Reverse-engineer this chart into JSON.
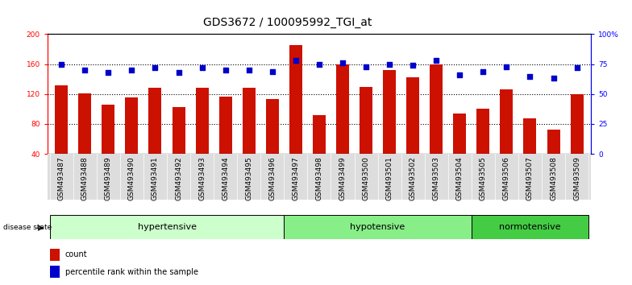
{
  "title": "GDS3672 / 100095992_TGI_at",
  "samples": [
    "GSM493487",
    "GSM493488",
    "GSM493489",
    "GSM493490",
    "GSM493491",
    "GSM493492",
    "GSM493493",
    "GSM493494",
    "GSM493495",
    "GSM493496",
    "GSM493497",
    "GSM493498",
    "GSM493499",
    "GSM493500",
    "GSM493501",
    "GSM493502",
    "GSM493503",
    "GSM493504",
    "GSM493505",
    "GSM493506",
    "GSM493507",
    "GSM493508",
    "GSM493509"
  ],
  "count_values": [
    132,
    121,
    106,
    115,
    128,
    103,
    128,
    117,
    128,
    113,
    185,
    92,
    160,
    130,
    152,
    142,
    160,
    94,
    100,
    126,
    88,
    72,
    120
  ],
  "percentile_values": [
    75,
    70,
    68,
    70,
    72,
    68,
    72,
    70,
    70,
    69,
    78,
    75,
    76,
    73,
    75,
    74,
    78,
    66,
    69,
    73,
    65,
    63,
    72
  ],
  "groups": [
    {
      "label": "hypertensive",
      "start": 0,
      "end": 9,
      "color": "#ccffcc"
    },
    {
      "label": "hypotensive",
      "start": 10,
      "end": 17,
      "color": "#88ee88"
    },
    {
      "label": "normotensive",
      "start": 18,
      "end": 22,
      "color": "#44cc44"
    }
  ],
  "ylim_left": [
    40,
    200
  ],
  "ylim_right": [
    0,
    100
  ],
  "yticks_left": [
    40,
    80,
    120,
    160,
    200
  ],
  "yticks_right": [
    0,
    25,
    50,
    75,
    100
  ],
  "grid_yticks": [
    80,
    120,
    160
  ],
  "bar_color": "#cc1100",
  "dot_color": "#0000cc",
  "background_color": "#ffffff",
  "title_fontsize": 10,
  "tick_fontsize": 6.5,
  "label_fontsize": 8,
  "legend_fontsize": 7
}
